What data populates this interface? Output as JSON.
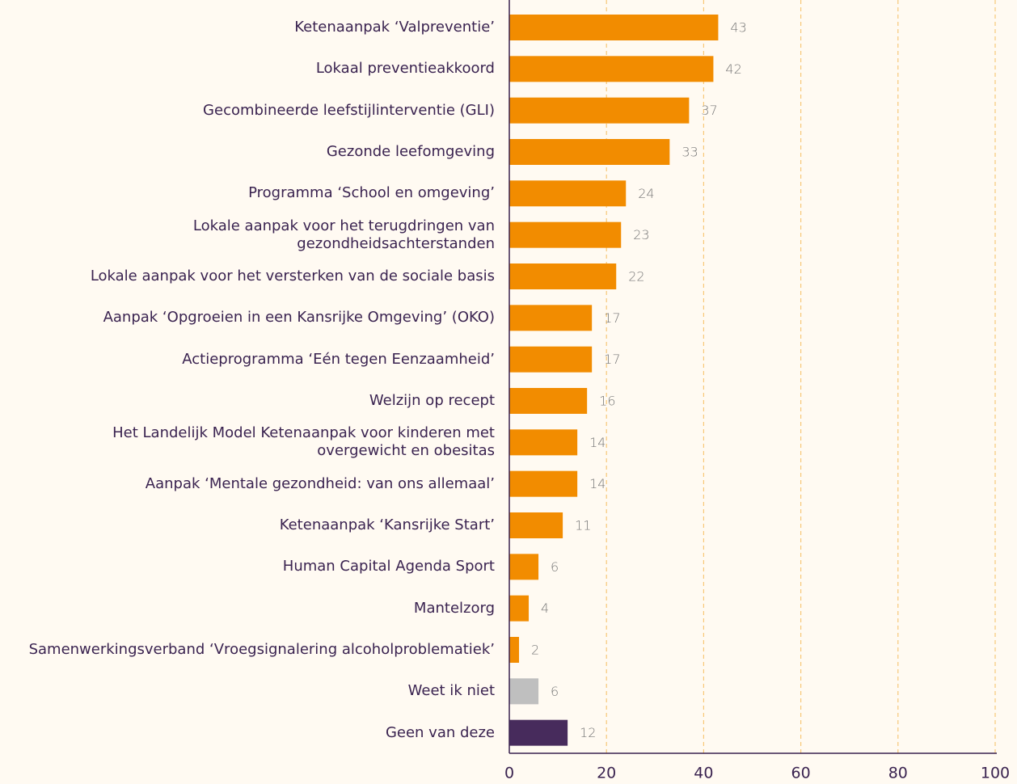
{
  "chart_data": {
    "type": "bar",
    "orientation": "horizontal",
    "categories": [
      "Ketenaanpak ‘Valpreventie’",
      "Lokaal preventieakkoord",
      "Gecombineerde leefstijlinterventie (GLI)",
      "Gezonde leefomgeving",
      "Programma ‘School en omgeving’",
      "Lokale aanpak voor het terugdringen van\ngezondheidsachterstanden",
      "Lokale aanpak voor het versterken van de sociale basis",
      "Aanpak ‘Opgroeien in een Kansrijke Omgeving’ (OKO)",
      "Actieprogramma ‘Eén tegen Eenzaamheid’",
      "Welzijn op recept",
      "Het Landelijk Model Ketenaanpak voor kinderen met\novergewicht en obesitas",
      "Aanpak ‘Mentale gezondheid: van ons allemaal’",
      "Ketenaanpak ‘Kansrijke Start’",
      "Human Capital Agenda Sport",
      "Mantelzorg",
      "Samenwerkingsverband ‘Vroegsignalering alcoholproblematiek’",
      "Weet ik niet",
      "Geen van deze"
    ],
    "values": [
      43,
      42,
      37,
      33,
      24,
      23,
      22,
      17,
      17,
      16,
      14,
      14,
      11,
      6,
      4,
      2,
      6,
      12
    ],
    "colors": [
      "#f28c00",
      "#f28c00",
      "#f28c00",
      "#f28c00",
      "#f28c00",
      "#f28c00",
      "#f28c00",
      "#f28c00",
      "#f28c00",
      "#f28c00",
      "#f28c00",
      "#f28c00",
      "#f28c00",
      "#f28c00",
      "#f28c00",
      "#f28c00",
      "#bfbfbf",
      "#472b5c"
    ],
    "xlim": [
      0,
      100
    ],
    "xticks": [
      0,
      20,
      40,
      60,
      80,
      100
    ],
    "grid": true
  }
}
